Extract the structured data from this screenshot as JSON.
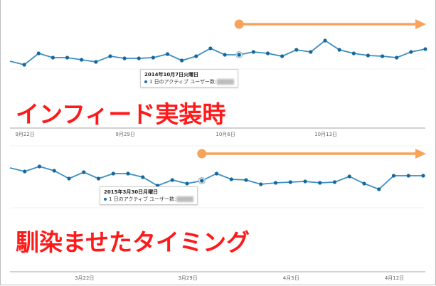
{
  "colors": {
    "line": "#3d8fc0",
    "dot": "#15689b",
    "arrow": "#f7a45a",
    "headline": "#ff1a1a",
    "axis": "#c4c4c4"
  },
  "chart_data": [
    {
      "type": "line",
      "title": "インフィード実装時",
      "series": [
        {
          "name": "1 日のアクティブ ユーザー数",
          "values": [
            14,
            9,
            25,
            19,
            19,
            16,
            13,
            21,
            18,
            18,
            19,
            24,
            15,
            21,
            32,
            23,
            23,
            27,
            25,
            21,
            30,
            27,
            43,
            30,
            25,
            22,
            21,
            19,
            27,
            31
          ]
        }
      ],
      "ylim": [
        0,
        50
      ],
      "highlight_index": 16,
      "xticks": [
        "9月22日",
        "9月29日",
        "10月6日",
        "10月13日"
      ],
      "xtick_indices": [
        1,
        8,
        15,
        22
      ],
      "arrow_from_index": 16,
      "tooltip": {
        "date": "2014年10月7日火曜日",
        "label": "1 日のアクティブ ユーザー数:"
      },
      "grid": false
    },
    {
      "type": "line",
      "title": "馴染ませたタイミング",
      "series": [
        {
          "name": "1 日のアクティブ ユーザー数",
          "values": [
            64,
            59,
            66,
            60,
            49,
            58,
            49,
            56,
            56,
            51,
            39,
            47,
            42,
            46,
            56,
            48,
            47,
            41,
            43,
            44,
            45,
            43,
            44,
            52,
            42,
            34,
            53,
            53,
            53
          ]
        }
      ],
      "ylim": [
        25,
        75
      ],
      "highlight_index": 13,
      "xticks": [
        "3月22日",
        "3月29日",
        "4月5日",
        "4月12日"
      ],
      "xtick_indices": [
        5,
        12,
        19,
        26
      ],
      "arrow_from_index": 13,
      "tooltip": {
        "date": "2015年3月30日月曜日",
        "label": "1 日のアクティブ ユーザー数:"
      },
      "grid": false
    }
  ]
}
